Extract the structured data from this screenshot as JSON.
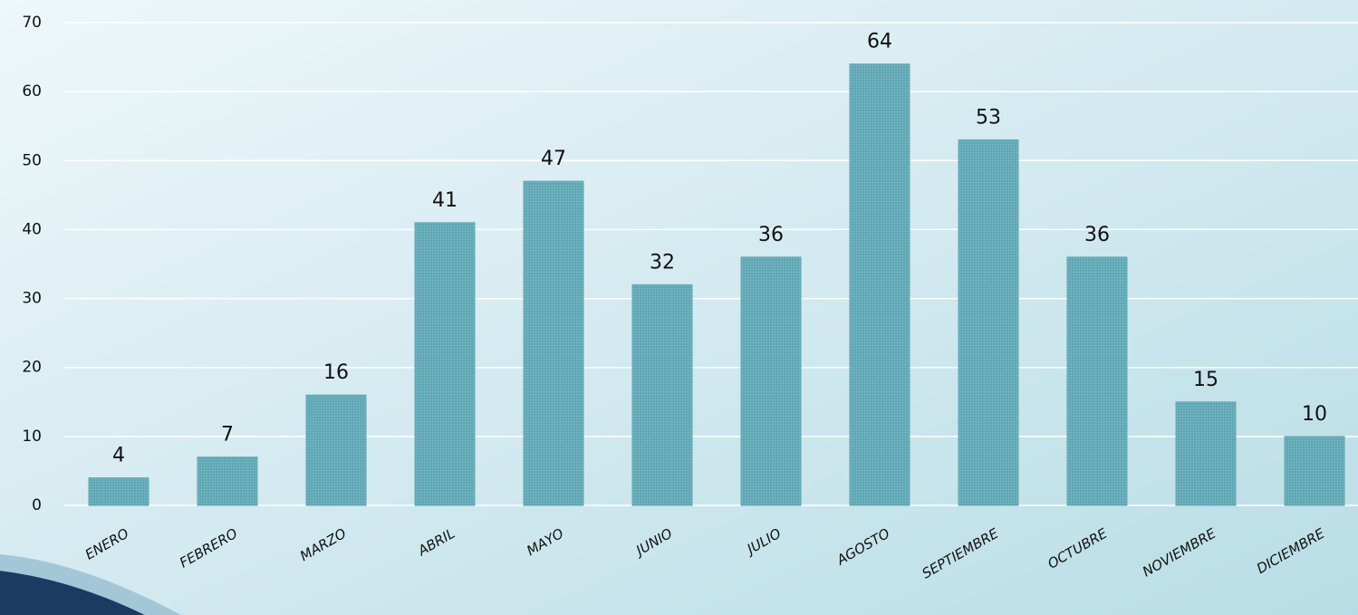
{
  "chart_data": {
    "type": "bar",
    "categories": [
      "ENERO",
      "FEBRERO",
      "MARZO",
      "ABRIL",
      "MAYO",
      "JUNIO",
      "JULIO",
      "AGOSTO",
      "SEPTIEMBRE",
      "OCTUBRE",
      "NOVIEMBRE",
      "DICIEMBRE"
    ],
    "values": [
      4,
      7,
      16,
      41,
      47,
      32,
      36,
      64,
      53,
      36,
      15,
      10
    ],
    "color": "#62a9b6",
    "ylim": [
      0,
      70
    ],
    "yticks": [
      0,
      10,
      20,
      30,
      40,
      50,
      60,
      70
    ],
    "grid": true
  }
}
